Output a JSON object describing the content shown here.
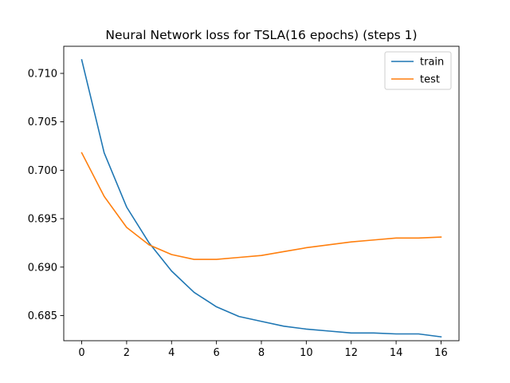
{
  "chart_data": {
    "type": "line",
    "title": "Neural Network loss for TSLA(16 epochs) (steps 1)",
    "xlabel": "",
    "ylabel": "",
    "xlim": [
      -0.8,
      16.8
    ],
    "ylim": [
      0.6824,
      0.7128
    ],
    "x_ticks": [
      0,
      2,
      4,
      6,
      8,
      10,
      12,
      14,
      16
    ],
    "x_tick_labels": [
      "0",
      "2",
      "4",
      "6",
      "8",
      "10",
      "12",
      "14",
      "16"
    ],
    "y_ticks": [
      0.685,
      0.69,
      0.695,
      0.7,
      0.705,
      0.71
    ],
    "y_tick_labels": [
      "0.685",
      "0.690",
      "0.695",
      "0.700",
      "0.705",
      "0.710"
    ],
    "grid": false,
    "legend_position": "top-right",
    "x": [
      0,
      1,
      2,
      3,
      4,
      5,
      6,
      7,
      8,
      9,
      10,
      11,
      12,
      13,
      14,
      15,
      16
    ],
    "series": [
      {
        "name": "train",
        "color": "#1f77b4",
        "values": [
          0.7114,
          0.7018,
          0.6962,
          0.6925,
          0.6896,
          0.6874,
          0.6859,
          0.6849,
          0.6844,
          0.6839,
          0.6836,
          0.6834,
          0.6832,
          0.6832,
          0.6831,
          0.6831,
          0.6828
        ]
      },
      {
        "name": "test",
        "color": "#ff7f0e",
        "values": [
          0.7018,
          0.6973,
          0.6941,
          0.6923,
          0.6913,
          0.6908,
          0.6908,
          0.691,
          0.6912,
          0.6916,
          0.692,
          0.6923,
          0.6926,
          0.6928,
          0.693,
          0.693,
          0.6931
        ]
      }
    ]
  }
}
